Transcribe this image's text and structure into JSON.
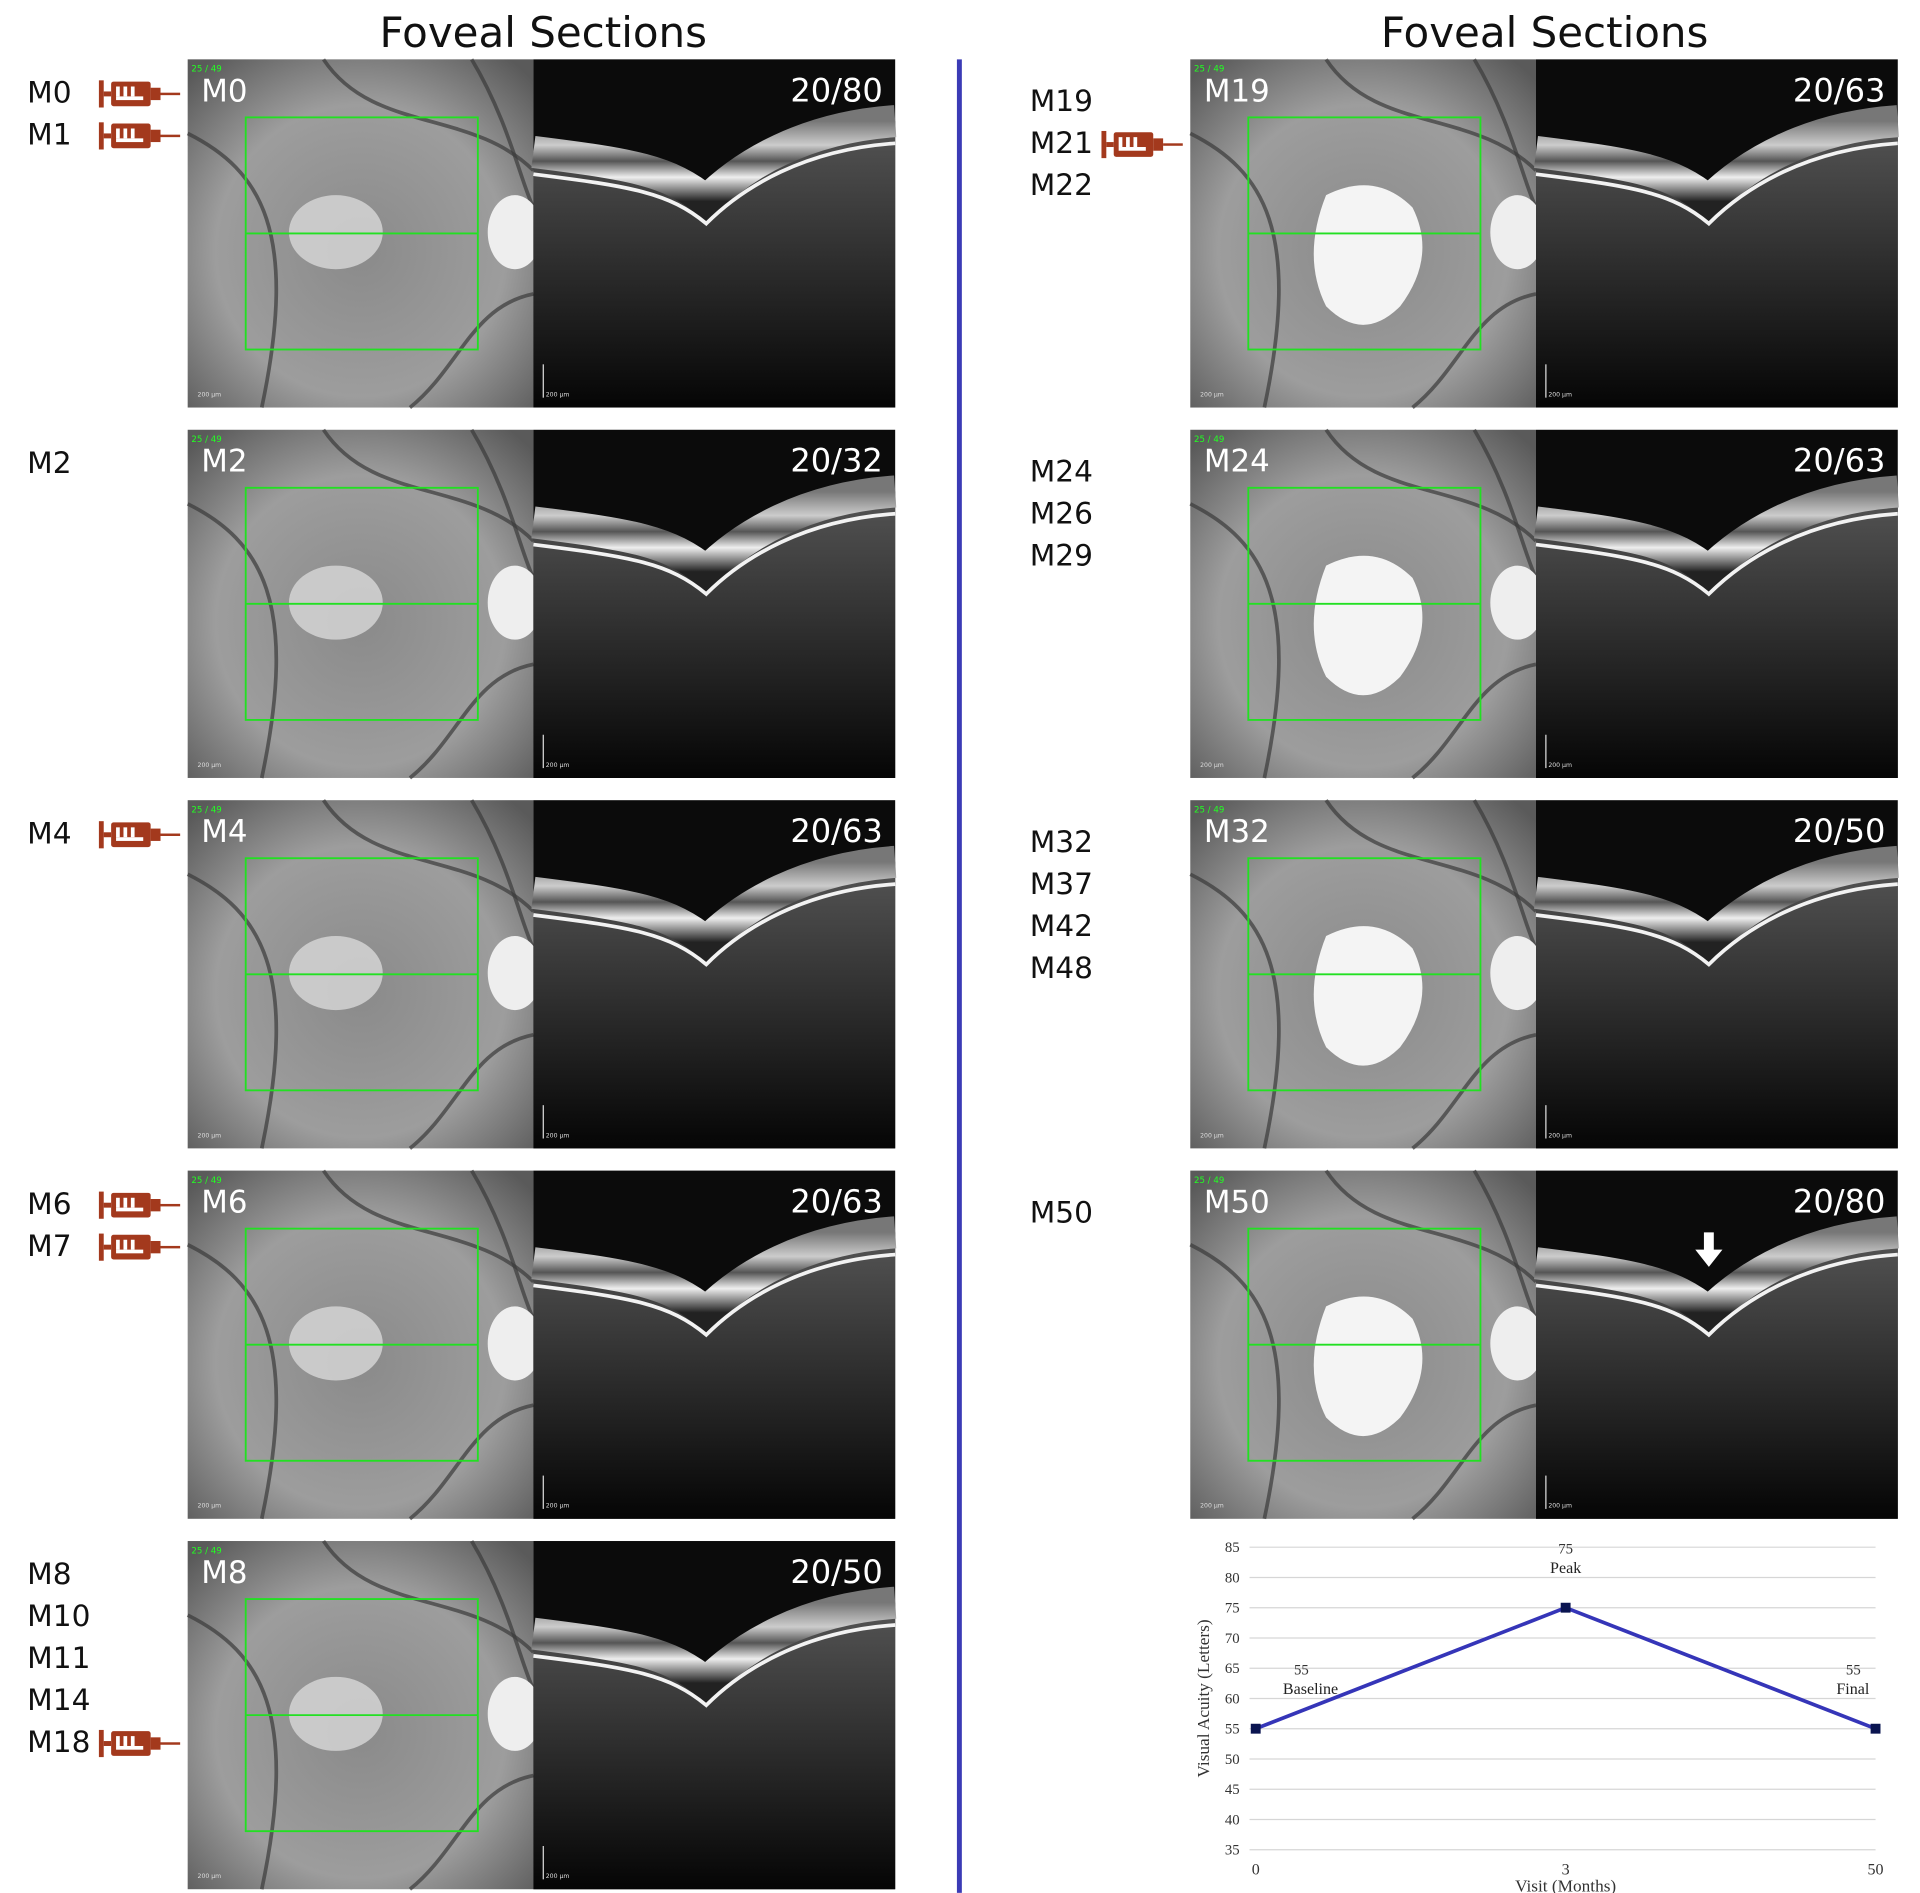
{
  "left": {
    "title": "Foveal Sections",
    "rows": [
      {
        "visits": [
          {
            "label": "M0",
            "injection": true
          },
          {
            "label": "M1",
            "injection": true
          }
        ],
        "panel": {
          "label": "M0",
          "acuity": "20/80",
          "frame": "25 / 49",
          "scale": "200 µm"
        }
      },
      {
        "visits": [
          {
            "label": "M2",
            "injection": false
          }
        ],
        "panel": {
          "label": "M2",
          "acuity": "20/32",
          "frame": "25 / 49",
          "scale": "200 µm"
        }
      },
      {
        "visits": [
          {
            "label": "M4",
            "injection": true
          }
        ],
        "panel": {
          "label": "M4",
          "acuity": "20/63",
          "frame": "25 / 49",
          "scale": "200 µm"
        }
      },
      {
        "visits": [
          {
            "label": "M6",
            "injection": true
          },
          {
            "label": "M7",
            "injection": true
          }
        ],
        "panel": {
          "label": "M6",
          "acuity": "20/63",
          "frame": "25 / 49",
          "scale": "200 µm"
        }
      },
      {
        "visits": [
          {
            "label": "M8",
            "injection": false
          },
          {
            "label": "M10",
            "injection": false
          },
          {
            "label": "M11",
            "injection": false
          },
          {
            "label": "M14",
            "injection": false
          },
          {
            "label": "M18",
            "injection": true
          }
        ],
        "panel": {
          "label": "M8",
          "acuity": "20/50",
          "frame": "25 / 49",
          "scale": "200 µm"
        }
      }
    ]
  },
  "right": {
    "title": "Foveal Sections",
    "rows": [
      {
        "visits": [
          {
            "label": "M19",
            "injection": false
          },
          {
            "label": "M21",
            "injection": true
          },
          {
            "label": "M22",
            "injection": false
          }
        ],
        "panel": {
          "label": "M19",
          "acuity": "20/63",
          "frame": "25 / 49",
          "scale": "200 µm"
        }
      },
      {
        "visits": [
          {
            "label": "M24",
            "injection": false
          },
          {
            "label": "M26",
            "injection": false
          },
          {
            "label": "M29",
            "injection": false
          }
        ],
        "panel": {
          "label": "M24",
          "acuity": "20/63",
          "frame": "25 / 49",
          "scale": "200 µm"
        }
      },
      {
        "visits": [
          {
            "label": "M32",
            "injection": false
          },
          {
            "label": "M37",
            "injection": false
          },
          {
            "label": "M42",
            "injection": false
          },
          {
            "label": "M48",
            "injection": false
          }
        ],
        "panel": {
          "label": "M32",
          "acuity": "20/50",
          "frame": "25 / 49",
          "scale": "200 µm"
        }
      },
      {
        "visits": [
          {
            "label": "M50",
            "injection": false
          }
        ],
        "panel": {
          "label": "M50",
          "acuity": "20/80",
          "frame": "25 / 49",
          "scale": "200 µm",
          "arrow": true
        }
      }
    ]
  },
  "chart_data": {
    "type": "line",
    "x_label": "Visit (Months)",
    "y_label": "Visual Acuity (Letters)",
    "categories": [
      "0",
      "3",
      "50"
    ],
    "values": [
      55,
      75,
      55
    ],
    "annotations": [
      "Baseline",
      "Peak",
      "Final"
    ],
    "color": "#3535b8",
    "marker_color": "#0a1450",
    "ylim": [
      35,
      85
    ],
    "yticks": [
      35,
      40,
      45,
      50,
      55,
      60,
      65,
      70,
      75,
      80,
      85
    ],
    "grid": true
  }
}
